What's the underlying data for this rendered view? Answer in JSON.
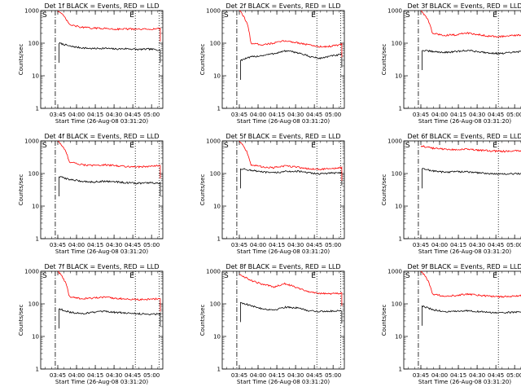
{
  "colors": {
    "events": "#000000",
    "lld": "#ff0000",
    "axes": "#000000"
  },
  "common": {
    "ylabel": "Counts/sec",
    "xlabel": "Start Time (26-Aug-08 03:31:20)",
    "xticks": [
      "03:45",
      "04:00",
      "04:15",
      "04:30",
      "04:45",
      "05:00"
    ],
    "yticks": [
      "1",
      "10",
      "100",
      "1000"
    ],
    "marker_s": "S",
    "marker_e": "E"
  },
  "chart_data": [
    {
      "type": "line",
      "title": "Det 1f BLACK = Events, RED = LLD",
      "ylim": [
        1,
        1000
      ],
      "yscale": "log",
      "xlim": [
        "03:31:20",
        "05:09:00"
      ],
      "series": [
        {
          "color": "#000000",
          "start": "03:46",
          "end": "05:07",
          "values": [
            100,
            80,
            72,
            68,
            70,
            66,
            68,
            64,
            66,
            62
          ]
        },
        {
          "color": "#ff0000",
          "start": "03:45",
          "end": "05:07",
          "values": [
            1000,
            370,
            310,
            290,
            285,
            270,
            275,
            265,
            270,
            280
          ]
        }
      ]
    },
    {
      "type": "line",
      "title": "Det 2f BLACK = Events, RED = LLD",
      "ylim": [
        1,
        1000
      ],
      "yscale": "log",
      "xlim": [
        "03:31:20",
        "05:09:00"
      ],
      "series": [
        {
          "color": "#000000",
          "start": "03:46",
          "end": "05:07",
          "values": [
            30,
            38,
            42,
            48,
            58,
            52,
            40,
            34,
            40,
            45
          ]
        },
        {
          "color": "#ff0000",
          "start": "03:45",
          "end": "05:07",
          "values": [
            1000,
            100,
            90,
            100,
            118,
            105,
            90,
            78,
            80,
            92
          ]
        }
      ]
    },
    {
      "type": "line",
      "title": "Det 3f BLACK = Events, RED = LLD",
      "ylim": [
        1,
        1000
      ],
      "yscale": "log",
      "xlim": [
        "03:31:20",
        "05:09:00"
      ],
      "series": [
        {
          "color": "#000000",
          "start": "03:46",
          "end": "05:07",
          "values": [
            60,
            55,
            52,
            55,
            60,
            55,
            50,
            48,
            52,
            56
          ]
        },
        {
          "color": "#ff0000",
          "start": "03:45",
          "end": "05:07",
          "values": [
            1000,
            200,
            175,
            180,
            205,
            185,
            165,
            160,
            170,
            178
          ]
        }
      ]
    },
    {
      "type": "line",
      "title": "Det 4f BLACK = Events, RED = LLD",
      "ylim": [
        1,
        1000
      ],
      "yscale": "log",
      "xlim": [
        "03:31:20",
        "05:09:00"
      ],
      "series": [
        {
          "color": "#000000",
          "start": "03:46",
          "end": "05:07",
          "values": [
            80,
            65,
            58,
            55,
            58,
            56,
            52,
            50,
            52,
            50
          ]
        },
        {
          "color": "#ff0000",
          "start": "03:45",
          "end": "05:07",
          "values": [
            1000,
            230,
            190,
            175,
            185,
            175,
            165,
            160,
            165,
            175
          ]
        }
      ]
    },
    {
      "type": "line",
      "title": "Det 5f BLACK = Events, RED = LLD",
      "ylim": [
        1,
        1000
      ],
      "yscale": "log",
      "xlim": [
        "03:31:20",
        "05:09:00"
      ],
      "series": [
        {
          "color": "#000000",
          "start": "03:46",
          "end": "05:07",
          "values": [
            140,
            125,
            110,
            105,
            115,
            118,
            105,
            98,
            102,
            108
          ]
        },
        {
          "color": "#ff0000",
          "start": "03:45",
          "end": "05:07",
          "values": [
            1000,
            185,
            160,
            150,
            170,
            160,
            140,
            135,
            140,
            150
          ]
        }
      ]
    },
    {
      "type": "line",
      "title": "Det 6f BLACK = Events, RED = LLD",
      "ylim": [
        1,
        1000
      ],
      "yscale": "log",
      "xlim": [
        "03:31:20",
        "05:09:00"
      ],
      "series": [
        {
          "color": "#000000",
          "start": "03:46",
          "end": "05:07",
          "values": [
            140,
            120,
            110,
            115,
            112,
            105,
            100,
            95,
            98,
            100
          ]
        },
        {
          "color": "#ff0000",
          "start": "03:45",
          "end": "05:07",
          "values": [
            700,
            600,
            560,
            540,
            555,
            520,
            500,
            480,
            490,
            500
          ]
        }
      ]
    },
    {
      "type": "line",
      "title": "Det 7f BLACK = Events, RED = LLD",
      "ylim": [
        1,
        1000
      ],
      "yscale": "log",
      "xlim": [
        "03:31:20",
        "05:09:00"
      ],
      "series": [
        {
          "color": "#000000",
          "start": "03:46",
          "end": "05:07",
          "values": [
            70,
            55,
            50,
            55,
            58,
            55,
            52,
            50,
            48,
            50
          ]
        },
        {
          "color": "#ff0000",
          "start": "03:45",
          "end": "05:07",
          "values": [
            1000,
            165,
            145,
            150,
            158,
            150,
            140,
            135,
            138,
            145
          ]
        }
      ]
    },
    {
      "type": "line",
      "title": "Det 8f BLACK = Events, RED = LLD",
      "ylim": [
        1,
        1000
      ],
      "yscale": "log",
      "xlim": [
        "03:31:20",
        "05:09:00"
      ],
      "series": [
        {
          "color": "#000000",
          "start": "03:46",
          "end": "05:07",
          "values": [
            110,
            85,
            70,
            65,
            80,
            75,
            62,
            58,
            60,
            62
          ]
        },
        {
          "color": "#ff0000",
          "start": "03:45",
          "end": "05:07",
          "values": [
            800,
            520,
            400,
            330,
            420,
            320,
            240,
            210,
            205,
            215
          ]
        }
      ]
    },
    {
      "type": "line",
      "title": "Det 9f BLACK = Events, RED = LLD",
      "ylim": [
        1,
        1000
      ],
      "yscale": "log",
      "xlim": [
        "03:31:20",
        "05:09:00"
      ],
      "series": [
        {
          "color": "#000000",
          "start": "03:46",
          "end": "05:07",
          "values": [
            85,
            65,
            58,
            58,
            62,
            58,
            55,
            52,
            55,
            58
          ]
        },
        {
          "color": "#ff0000",
          "start": "03:45",
          "end": "05:07",
          "values": [
            1000,
            200,
            175,
            180,
            200,
            185,
            170,
            165,
            170,
            178
          ]
        }
      ]
    }
  ]
}
